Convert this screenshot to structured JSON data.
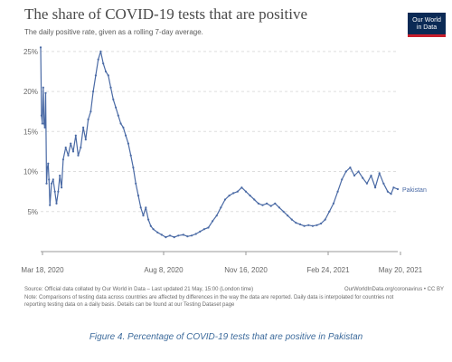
{
  "header": {
    "title": "The share of COVID-19 tests that are positive",
    "subtitle": "The daily positive rate, given as a rolling 7-day average.",
    "logo_line1": "Our World",
    "logo_line2": "in Data"
  },
  "footer": {
    "source": "Source: Official data collated by Our World in Data – Last updated 21 May, 15:00 (London time)",
    "source_right": "OurWorldInData.org/coronavirus • CC BY",
    "note_line1": "Note: Comparisons of testing data across countries are affected by differences in the way the data are reported. Daily data is interpolated for countries not",
    "note_line2": "reporting testing data on a daily basis. Details can be found at our Testing Dataset page"
  },
  "caption": "Figure 4. Percentage of COVID-19 tests that are positive in Pakistan",
  "colors": {
    "series": "#4a6aa5",
    "grid": "#dddddd",
    "axis": "#999999"
  },
  "chart_data": {
    "type": "line",
    "title": "The share of COVID-19 tests that are positive",
    "subtitle": "The daily positive rate, given as a rolling 7-day average.",
    "xlabel": "",
    "ylabel": "",
    "x_ticks": [
      "Mar 18, 2020",
      "Aug 8, 2020",
      "Nov 16, 2020",
      "Feb 24, 2021",
      "May 20, 2021"
    ],
    "y_ticks": [
      "5%",
      "10%",
      "15%",
      "20%",
      "25%"
    ],
    "ylim": [
      0,
      26
    ],
    "xlim": [
      "2020-03-18",
      "2021-05-20"
    ],
    "grid": "horizontal dashed",
    "series": [
      {
        "name": "Pakistan",
        "points": [
          [
            "2020-03-18",
            25.5
          ],
          [
            "2020-03-19",
            17.0
          ],
          [
            "2020-03-20",
            16.0
          ],
          [
            "2020-03-21",
            20.5
          ],
          [
            "2020-03-22",
            16.0
          ],
          [
            "2020-03-23",
            15.5
          ],
          [
            "2020-03-24",
            19.8
          ],
          [
            "2020-03-25",
            8.5
          ],
          [
            "2020-03-26",
            10.5
          ],
          [
            "2020-03-27",
            11.0
          ],
          [
            "2020-03-28",
            9.0
          ],
          [
            "2020-03-29",
            5.8
          ],
          [
            "2020-03-31",
            8.5
          ],
          [
            "2020-04-02",
            9.0
          ],
          [
            "2020-04-04",
            7.5
          ],
          [
            "2020-04-06",
            6.0
          ],
          [
            "2020-04-08",
            7.5
          ],
          [
            "2020-04-10",
            9.5
          ],
          [
            "2020-04-12",
            8.0
          ],
          [
            "2020-04-14",
            11.5
          ],
          [
            "2020-04-17",
            13.0
          ],
          [
            "2020-04-20",
            12.0
          ],
          [
            "2020-04-23",
            13.5
          ],
          [
            "2020-04-26",
            12.5
          ],
          [
            "2020-04-29",
            14.5
          ],
          [
            "2020-05-02",
            12.0
          ],
          [
            "2020-05-05",
            13.0
          ],
          [
            "2020-05-08",
            15.5
          ],
          [
            "2020-05-11",
            14.0
          ],
          [
            "2020-05-14",
            16.5
          ],
          [
            "2020-05-17",
            17.5
          ],
          [
            "2020-05-20",
            20.0
          ],
          [
            "2020-05-23",
            22.0
          ],
          [
            "2020-05-26",
            24.0
          ],
          [
            "2020-05-29",
            25.0
          ],
          [
            "2020-06-01",
            23.5
          ],
          [
            "2020-06-04",
            22.5
          ],
          [
            "2020-06-07",
            22.0
          ],
          [
            "2020-06-10",
            20.5
          ],
          [
            "2020-06-13",
            19.0
          ],
          [
            "2020-06-16",
            18.0
          ],
          [
            "2020-06-19",
            17.0
          ],
          [
            "2020-06-22",
            16.0
          ],
          [
            "2020-06-25",
            15.5
          ],
          [
            "2020-06-28",
            14.5
          ],
          [
            "2020-07-01",
            13.5
          ],
          [
            "2020-07-04",
            12.0
          ],
          [
            "2020-07-07",
            10.5
          ],
          [
            "2020-07-10",
            8.5
          ],
          [
            "2020-07-13",
            7.0
          ],
          [
            "2020-07-16",
            5.5
          ],
          [
            "2020-07-19",
            4.5
          ],
          [
            "2020-07-22",
            5.5
          ],
          [
            "2020-07-25",
            4.0
          ],
          [
            "2020-07-28",
            3.2
          ],
          [
            "2020-07-31",
            2.8
          ],
          [
            "2020-08-05",
            2.4
          ],
          [
            "2020-08-10",
            2.1
          ],
          [
            "2020-08-15",
            1.8
          ],
          [
            "2020-08-20",
            2.0
          ],
          [
            "2020-08-25",
            1.8
          ],
          [
            "2020-08-30",
            2.0
          ],
          [
            "2020-09-05",
            2.1
          ],
          [
            "2020-09-10",
            1.9
          ],
          [
            "2020-09-15",
            2.0
          ],
          [
            "2020-09-20",
            2.2
          ],
          [
            "2020-09-25",
            2.5
          ],
          [
            "2020-09-30",
            2.8
          ],
          [
            "2020-10-05",
            3.0
          ],
          [
            "2020-10-10",
            3.8
          ],
          [
            "2020-10-15",
            4.5
          ],
          [
            "2020-10-20",
            5.5
          ],
          [
            "2020-10-25",
            6.5
          ],
          [
            "2020-10-30",
            7.0
          ],
          [
            "2020-11-04",
            7.3
          ],
          [
            "2020-11-09",
            7.5
          ],
          [
            "2020-11-14",
            8.0
          ],
          [
            "2020-11-19",
            7.5
          ],
          [
            "2020-11-24",
            7.0
          ],
          [
            "2020-11-29",
            6.5
          ],
          [
            "2020-12-04",
            6.0
          ],
          [
            "2020-12-09",
            5.8
          ],
          [
            "2020-12-14",
            6.0
          ],
          [
            "2020-12-19",
            5.7
          ],
          [
            "2020-12-24",
            6.0
          ],
          [
            "2020-12-29",
            5.5
          ],
          [
            "2021-01-03",
            5.0
          ],
          [
            "2021-01-08",
            4.5
          ],
          [
            "2021-01-13",
            4.0
          ],
          [
            "2021-01-18",
            3.6
          ],
          [
            "2021-01-23",
            3.4
          ],
          [
            "2021-01-28",
            3.2
          ],
          [
            "2021-02-02",
            3.3
          ],
          [
            "2021-02-07",
            3.2
          ],
          [
            "2021-02-12",
            3.3
          ],
          [
            "2021-02-17",
            3.5
          ],
          [
            "2021-02-22",
            4.0
          ],
          [
            "2021-02-27",
            5.0
          ],
          [
            "2021-03-04",
            6.0
          ],
          [
            "2021-03-09",
            7.5
          ],
          [
            "2021-03-14",
            9.0
          ],
          [
            "2021-03-19",
            10.0
          ],
          [
            "2021-03-24",
            10.5
          ],
          [
            "2021-03-29",
            9.5
          ],
          [
            "2021-04-03",
            10.0
          ],
          [
            "2021-04-08",
            9.2
          ],
          [
            "2021-04-13",
            8.5
          ],
          [
            "2021-04-18",
            9.5
          ],
          [
            "2021-04-23",
            8.0
          ],
          [
            "2021-04-28",
            9.8
          ],
          [
            "2021-05-03",
            8.5
          ],
          [
            "2021-05-08",
            7.5
          ],
          [
            "2021-05-12",
            7.2
          ],
          [
            "2021-05-15",
            8.0
          ],
          [
            "2021-05-20",
            7.8
          ]
        ]
      }
    ]
  }
}
